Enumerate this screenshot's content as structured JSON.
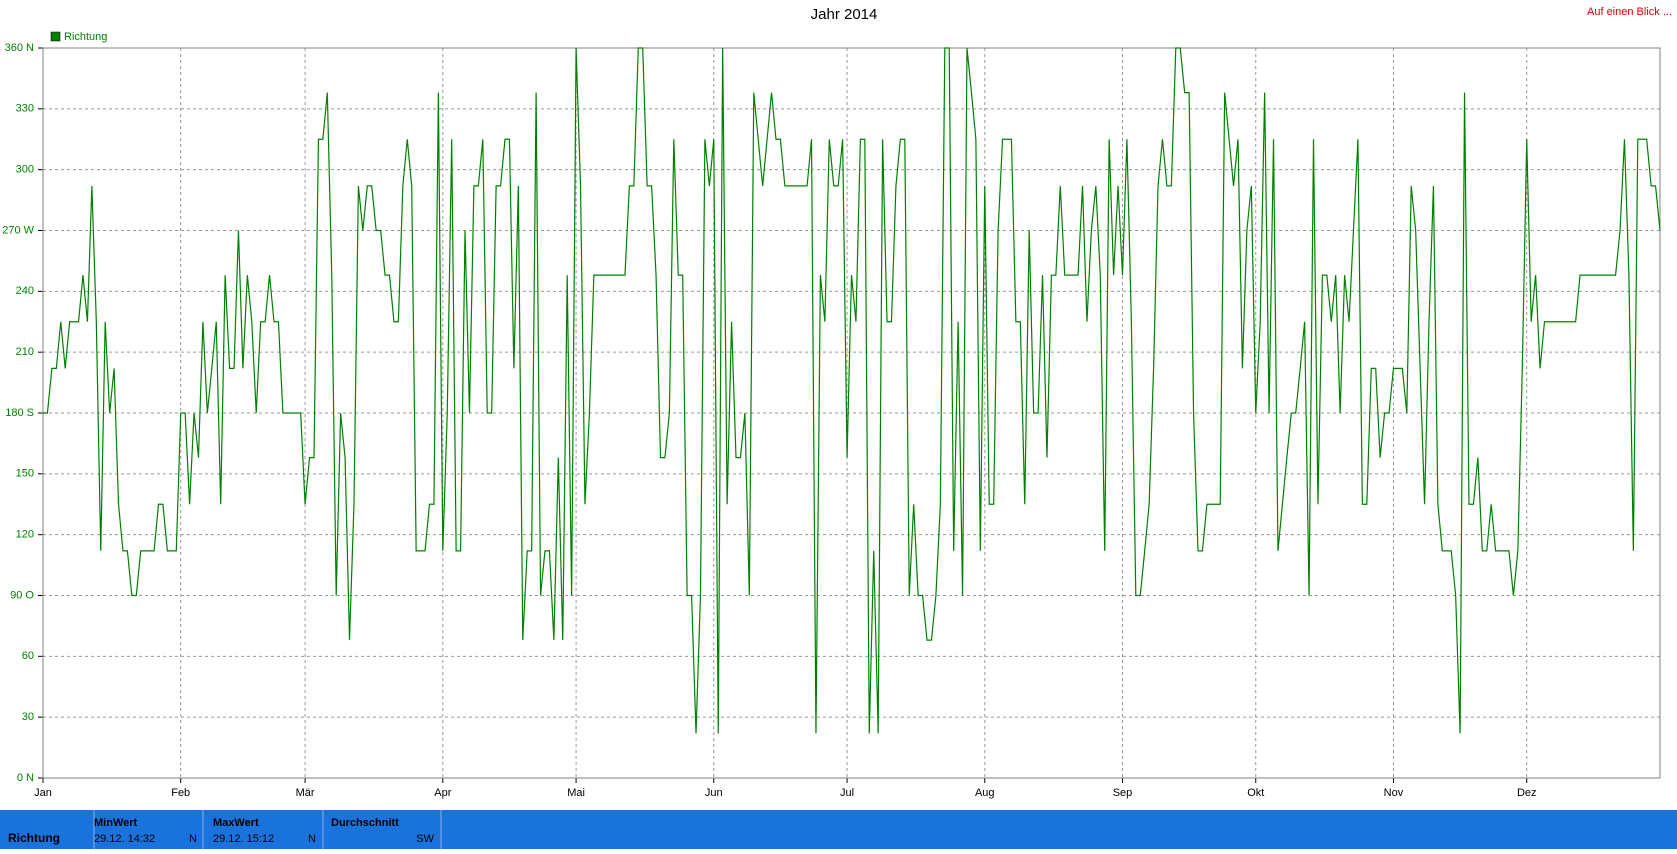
{
  "chart_data": {
    "type": "line",
    "title": "Jahr 2014",
    "link": "Auf einen Blick ...",
    "x": [
      0,
      1,
      2,
      3,
      4,
      5,
      6,
      7,
      8,
      9,
      10,
      11,
      12,
      13,
      14,
      15,
      16,
      17,
      18,
      19,
      20,
      21,
      22,
      23,
      24,
      25,
      26,
      27,
      28,
      29,
      30,
      31,
      32,
      33,
      34,
      35,
      36,
      37,
      38,
      39,
      40,
      41,
      42,
      43,
      44,
      45,
      46,
      47,
      48,
      49,
      50,
      51,
      52,
      53,
      54,
      55,
      56,
      57,
      58,
      59,
      60,
      61,
      62,
      63,
      64,
      65,
      66,
      67,
      68,
      69,
      70,
      71,
      72,
      73,
      74,
      75,
      76,
      77,
      78,
      79,
      80,
      81,
      82,
      83,
      84,
      85,
      86,
      87,
      88,
      89,
      90,
      91,
      92,
      93,
      94,
      95,
      96,
      97,
      98,
      99,
      100,
      101,
      102,
      103,
      104,
      105,
      106,
      107,
      108,
      109,
      110,
      111,
      112,
      113,
      114,
      115,
      116,
      117,
      118,
      119,
      120,
      121,
      122,
      123,
      124,
      125,
      126,
      127,
      128,
      129,
      130,
      131,
      132,
      133,
      134,
      135,
      136,
      137,
      138,
      139,
      140,
      141,
      142,
      143,
      144,
      145,
      146,
      147,
      148,
      149,
      150,
      151,
      152,
      153,
      154,
      155,
      156,
      157,
      158,
      159,
      160,
      161,
      162,
      163,
      164,
      165,
      166,
      167,
      168,
      169,
      170,
      171,
      172,
      173,
      174,
      175,
      176,
      177,
      178,
      179,
      180,
      181,
      182,
      183,
      184,
      185,
      186,
      187,
      188,
      189,
      190,
      191,
      192,
      193,
      194,
      195,
      196,
      197,
      198,
      199,
      200,
      201,
      202,
      203,
      204,
      205,
      206,
      207,
      208,
      209,
      210,
      211,
      212,
      213,
      214,
      215,
      216,
      217,
      218,
      219,
      220,
      221,
      222,
      223,
      224,
      225,
      226,
      227,
      228,
      229,
      230,
      231,
      232,
      233,
      234,
      235,
      236,
      237,
      238,
      239,
      240,
      241,
      242,
      243,
      244,
      245,
      246,
      247,
      248,
      249,
      250,
      251,
      252,
      253,
      254,
      255,
      256,
      257,
      258,
      259,
      260,
      261,
      262,
      263,
      264,
      265,
      266,
      267,
      268,
      269,
      270,
      271,
      272,
      273,
      274,
      275,
      276,
      277,
      278,
      279,
      280,
      281,
      282,
      283,
      284,
      285,
      286,
      287,
      288,
      289,
      290,
      291,
      292,
      293,
      294,
      295,
      296,
      297,
      298,
      299,
      300,
      301,
      302,
      303,
      304,
      305,
      306,
      307,
      308,
      309,
      310,
      311,
      312,
      313,
      314,
      315,
      316,
      317,
      318,
      319,
      320,
      321,
      322,
      323,
      324,
      325,
      326,
      327,
      328,
      329,
      330,
      331,
      332,
      333,
      334,
      335,
      336,
      337,
      338,
      339,
      340,
      341,
      342,
      343,
      344,
      345,
      346,
      347,
      348,
      349,
      350,
      351,
      352,
      353,
      354,
      355,
      356,
      357,
      358,
      359,
      360,
      361,
      362,
      363,
      364
    ],
    "series": [
      {
        "name": "Richtung",
        "color": "#008000",
        "values": [
          180,
          180,
          202,
          202,
          225,
          202,
          225,
          225,
          225,
          248,
          225,
          292,
          225,
          112,
          225,
          180,
          202,
          135,
          112,
          112,
          90,
          90,
          112,
          112,
          112,
          112,
          135,
          135,
          112,
          112,
          112,
          180,
          180,
          135,
          180,
          158,
          225,
          180,
          202,
          225,
          135,
          248,
          202,
          202,
          270,
          202,
          248,
          225,
          180,
          225,
          225,
          248,
          225,
          225,
          180,
          180,
          180,
          180,
          180,
          135,
          158,
          158,
          315,
          315,
          338,
          248,
          90,
          180,
          158,
          68,
          135,
          292,
          270,
          292,
          292,
          270,
          270,
          248,
          248,
          225,
          225,
          292,
          315,
          292,
          112,
          112,
          112,
          135,
          135,
          338,
          112,
          180,
          315,
          112,
          112,
          270,
          180,
          292,
          292,
          315,
          180,
          180,
          292,
          292,
          315,
          315,
          202,
          292,
          68,
          112,
          112,
          338,
          90,
          112,
          112,
          68,
          158,
          68,
          248,
          90,
          360,
          292,
          135,
          180,
          248,
          248,
          248,
          248,
          248,
          248,
          248,
          248,
          292,
          292,
          360,
          360,
          292,
          292,
          248,
          158,
          158,
          180,
          315,
          248,
          248,
          90,
          90,
          22,
          90,
          315,
          292,
          315,
          22,
          360,
          135,
          225,
          158,
          158,
          180,
          90,
          338,
          315,
          292,
          315,
          338,
          315,
          315,
          292,
          292,
          292,
          292,
          292,
          292,
          315,
          22,
          248,
          225,
          315,
          292,
          292,
          315,
          158,
          248,
          225,
          315,
          315,
          22,
          112,
          22,
          315,
          225,
          225,
          292,
          315,
          315,
          90,
          135,
          90,
          90,
          68,
          68,
          90,
          135,
          360,
          360,
          112,
          225,
          90,
          360,
          338,
          315,
          112,
          292,
          135,
          135,
          270,
          315,
          315,
          315,
          225,
          225,
          135,
          270,
          180,
          180,
          248,
          158,
          248,
          248,
          292,
          248,
          248,
          248,
          248,
          292,
          225,
          270,
          292,
          248,
          112,
          315,
          248,
          292,
          248,
          315,
          225,
          90,
          90,
          112,
          135,
          202,
          292,
          315,
          292,
          292,
          360,
          360,
          338,
          338,
          180,
          112,
          112,
          135,
          135,
          135,
          135,
          338,
          315,
          292,
          315,
          202,
          270,
          292,
          180,
          225,
          338,
          180,
          315,
          112,
          135,
          158,
          180,
          180,
          202,
          225,
          90,
          315,
          135,
          248,
          248,
          225,
          248,
          180,
          248,
          225,
          270,
          315,
          135,
          135,
          202,
          202,
          158,
          180,
          180,
          202,
          202,
          202,
          180,
          292,
          270,
          202,
          135,
          225,
          292,
          135,
          112,
          112,
          112,
          90,
          22,
          338,
          135,
          135,
          158,
          112,
          112,
          135,
          112,
          112,
          112,
          112,
          90,
          112,
          202,
          315,
          225,
          248,
          202,
          225,
          225,
          225,
          225,
          225,
          225,
          225,
          225,
          248,
          248,
          248,
          248,
          248,
          248,
          248,
          248,
          248,
          270,
          315,
          248,
          112,
          315,
          315,
          315,
          292,
          292,
          270
        ]
      }
    ],
    "xlim": [
      0,
      364
    ],
    "xticks": [
      {
        "value": 0,
        "label": "Jan"
      },
      {
        "value": 31,
        "label": "Feb"
      },
      {
        "value": 59,
        "label": "Mär"
      },
      {
        "value": 90,
        "label": "Apr"
      },
      {
        "value": 120,
        "label": "Mai"
      },
      {
        "value": 151,
        "label": "Jun"
      },
      {
        "value": 181,
        "label": "Jul"
      },
      {
        "value": 212,
        "label": "Aug"
      },
      {
        "value": 243,
        "label": "Sep"
      },
      {
        "value": 273,
        "label": "Okt"
      },
      {
        "value": 304,
        "label": "Nov"
      },
      {
        "value": 334,
        "label": "Dez"
      }
    ],
    "ylim": [
      0,
      360
    ],
    "yticks": [
      {
        "value": 0,
        "label": "0 N"
      },
      30,
      60,
      {
        "value": 90,
        "label": "90 O"
      },
      120,
      150,
      {
        "value": 180,
        "label": "180 S"
      },
      210,
      240,
      {
        "value": 270,
        "label": "270 W"
      },
      300,
      330,
      {
        "value": 360,
        "label": "360 N"
      }
    ],
    "grid": true
  },
  "summary": {
    "label": "Richtung",
    "cells": [
      {
        "title": "MinWert",
        "time": "29.12. 14:32",
        "dir": "N"
      },
      {
        "title": "MaxWert",
        "time": "29.12. 15:12",
        "dir": "N"
      },
      {
        "title": "Durchschnitt",
        "dir": "SW"
      }
    ]
  }
}
